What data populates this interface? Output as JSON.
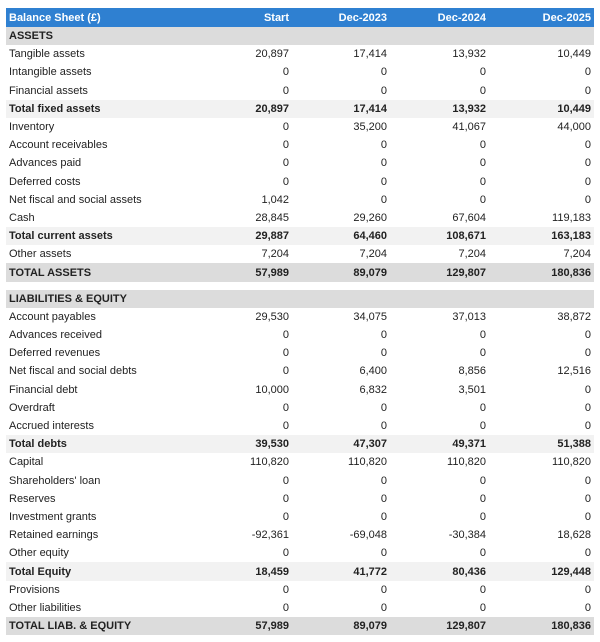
{
  "header": {
    "title": "Balance Sheet (£)",
    "columns": [
      "Start",
      "Dec-2023",
      "Dec-2024",
      "Dec-2025"
    ]
  },
  "sections": [
    {
      "title": "ASSETS",
      "rows": [
        {
          "label": "Tangible assets",
          "values": [
            "20,897",
            "17,414",
            "13,932",
            "10,449"
          ]
        },
        {
          "label": "Intangible assets",
          "values": [
            "0",
            "0",
            "0",
            "0"
          ]
        },
        {
          "label": "Financial assets",
          "values": [
            "0",
            "0",
            "0",
            "0"
          ]
        },
        {
          "label": "Total fixed assets",
          "values": [
            "20,897",
            "17,414",
            "13,932",
            "10,449"
          ],
          "bold": true
        },
        {
          "label": "Inventory",
          "values": [
            "0",
            "35,200",
            "41,067",
            "44,000"
          ]
        },
        {
          "label": "Account receivables",
          "values": [
            "0",
            "0",
            "0",
            "0"
          ]
        },
        {
          "label": "Advances paid",
          "values": [
            "0",
            "0",
            "0",
            "0"
          ]
        },
        {
          "label": "Deferred costs",
          "values": [
            "0",
            "0",
            "0",
            "0"
          ]
        },
        {
          "label": "Net fiscal and social assets",
          "values": [
            "1,042",
            "0",
            "0",
            "0"
          ]
        },
        {
          "label": "Cash",
          "values": [
            "28,845",
            "29,260",
            "67,604",
            "119,183"
          ]
        },
        {
          "label": "Total current assets",
          "values": [
            "29,887",
            "64,460",
            "108,671",
            "163,183"
          ],
          "bold": true
        },
        {
          "label": "Other assets",
          "values": [
            "7,204",
            "7,204",
            "7,204",
            "7,204"
          ]
        }
      ],
      "total": {
        "label": "TOTAL ASSETS",
        "values": [
          "57,989",
          "89,079",
          "129,807",
          "180,836"
        ]
      }
    },
    {
      "title": "LIABILITIES & EQUITY",
      "rows": [
        {
          "label": "Account payables",
          "values": [
            "29,530",
            "34,075",
            "37,013",
            "38,872"
          ]
        },
        {
          "label": "Advances received",
          "values": [
            "0",
            "0",
            "0",
            "0"
          ]
        },
        {
          "label": "Deferred revenues",
          "values": [
            "0",
            "0",
            "0",
            "0"
          ]
        },
        {
          "label": "Net fiscal and social debts",
          "values": [
            "0",
            "6,400",
            "8,856",
            "12,516"
          ]
        },
        {
          "label": "Financial debt",
          "values": [
            "10,000",
            "6,832",
            "3,501",
            "0"
          ]
        },
        {
          "label": "Overdraft",
          "values": [
            "0",
            "0",
            "0",
            "0"
          ]
        },
        {
          "label": "Accrued interests",
          "values": [
            "0",
            "0",
            "0",
            "0"
          ]
        },
        {
          "label": "Total debts",
          "values": [
            "39,530",
            "47,307",
            "49,371",
            "51,388"
          ],
          "bold": true
        },
        {
          "label": "Capital",
          "values": [
            "110,820",
            "110,820",
            "110,820",
            "110,820"
          ]
        },
        {
          "label": "Shareholders' loan",
          "values": [
            "0",
            "0",
            "0",
            "0"
          ]
        },
        {
          "label": "Reserves",
          "values": [
            "0",
            "0",
            "0",
            "0"
          ]
        },
        {
          "label": "Investment grants",
          "values": [
            "0",
            "0",
            "0",
            "0"
          ]
        },
        {
          "label": "Retained earnings",
          "values": [
            "-92,361",
            "-69,048",
            "-30,384",
            "18,628"
          ]
        },
        {
          "label": "Other equity",
          "values": [
            "0",
            "0",
            "0",
            "0"
          ]
        },
        {
          "label": "Total Equity",
          "values": [
            "18,459",
            "41,772",
            "80,436",
            "129,448"
          ],
          "bold": true
        },
        {
          "label": "Provisions",
          "values": [
            "0",
            "0",
            "0",
            "0"
          ]
        },
        {
          "label": "Other liabilities",
          "values": [
            "0",
            "0",
            "0",
            "0"
          ]
        }
      ],
      "total": {
        "label": "TOTAL LIAB. & EQUITY",
        "values": [
          "57,989",
          "89,079",
          "129,807",
          "180,836"
        ]
      }
    }
  ]
}
